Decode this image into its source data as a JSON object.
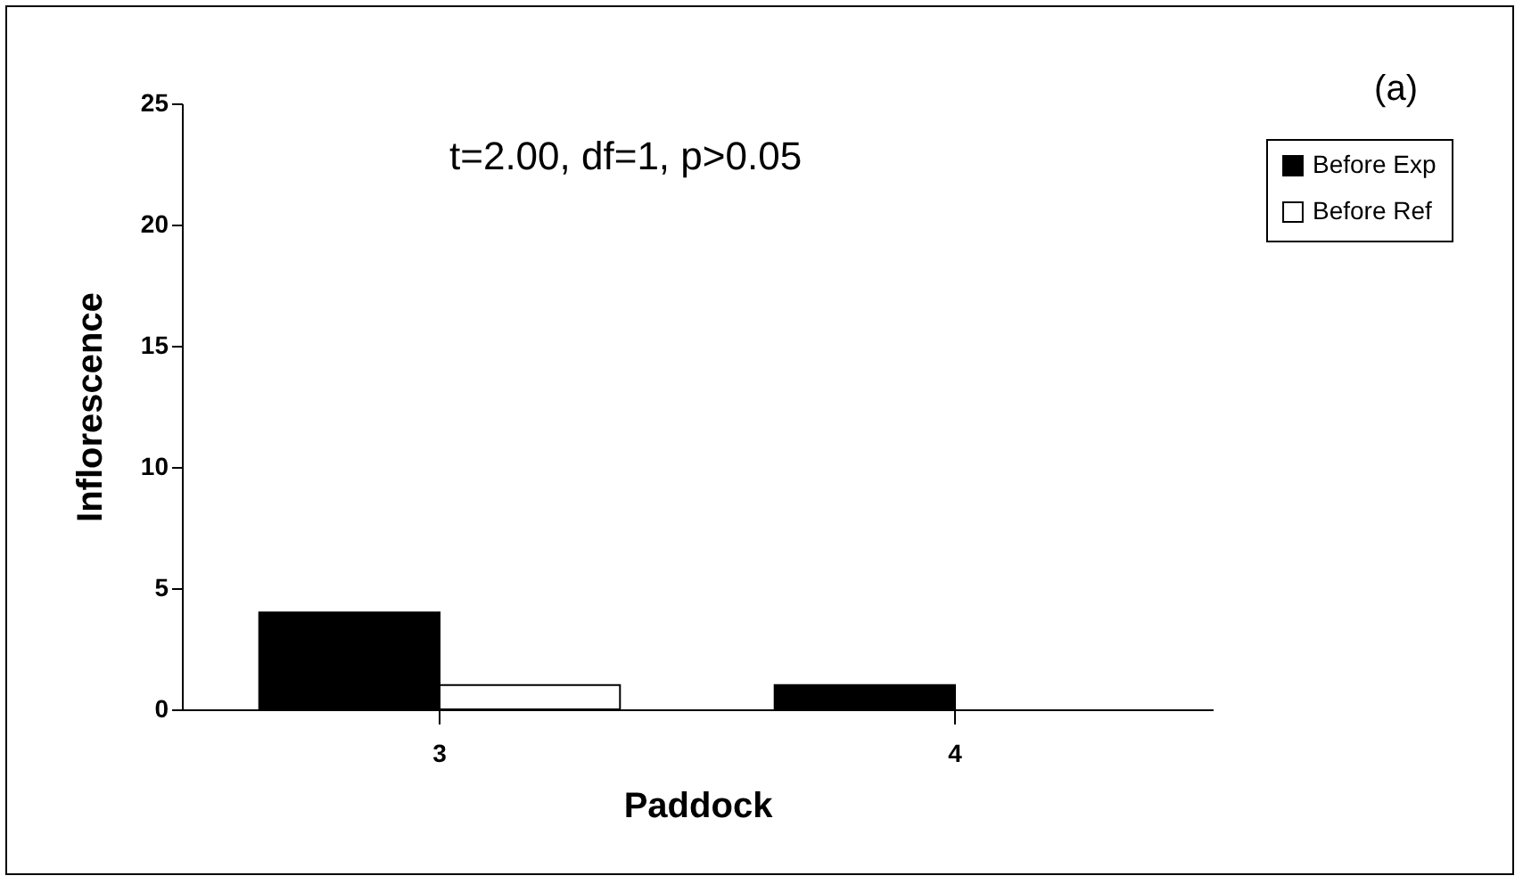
{
  "chart_data": {
    "type": "bar",
    "xlabel": "Paddock",
    "ylabel": "Inflorescence",
    "categories": [
      "3",
      "4"
    ],
    "series": [
      {
        "name": "Before Exp",
        "color": "#000000",
        "values": [
          4,
          1
        ]
      },
      {
        "name": "Before Ref",
        "color": "#ffffff",
        "values": [
          1,
          0
        ]
      }
    ],
    "ylim": [
      0,
      25
    ],
    "yticks": [
      0,
      5,
      10,
      15,
      20,
      25
    ],
    "legend": "right",
    "annotations": [
      "(a)",
      "t=2.00, df=1, p>0.05"
    ]
  }
}
